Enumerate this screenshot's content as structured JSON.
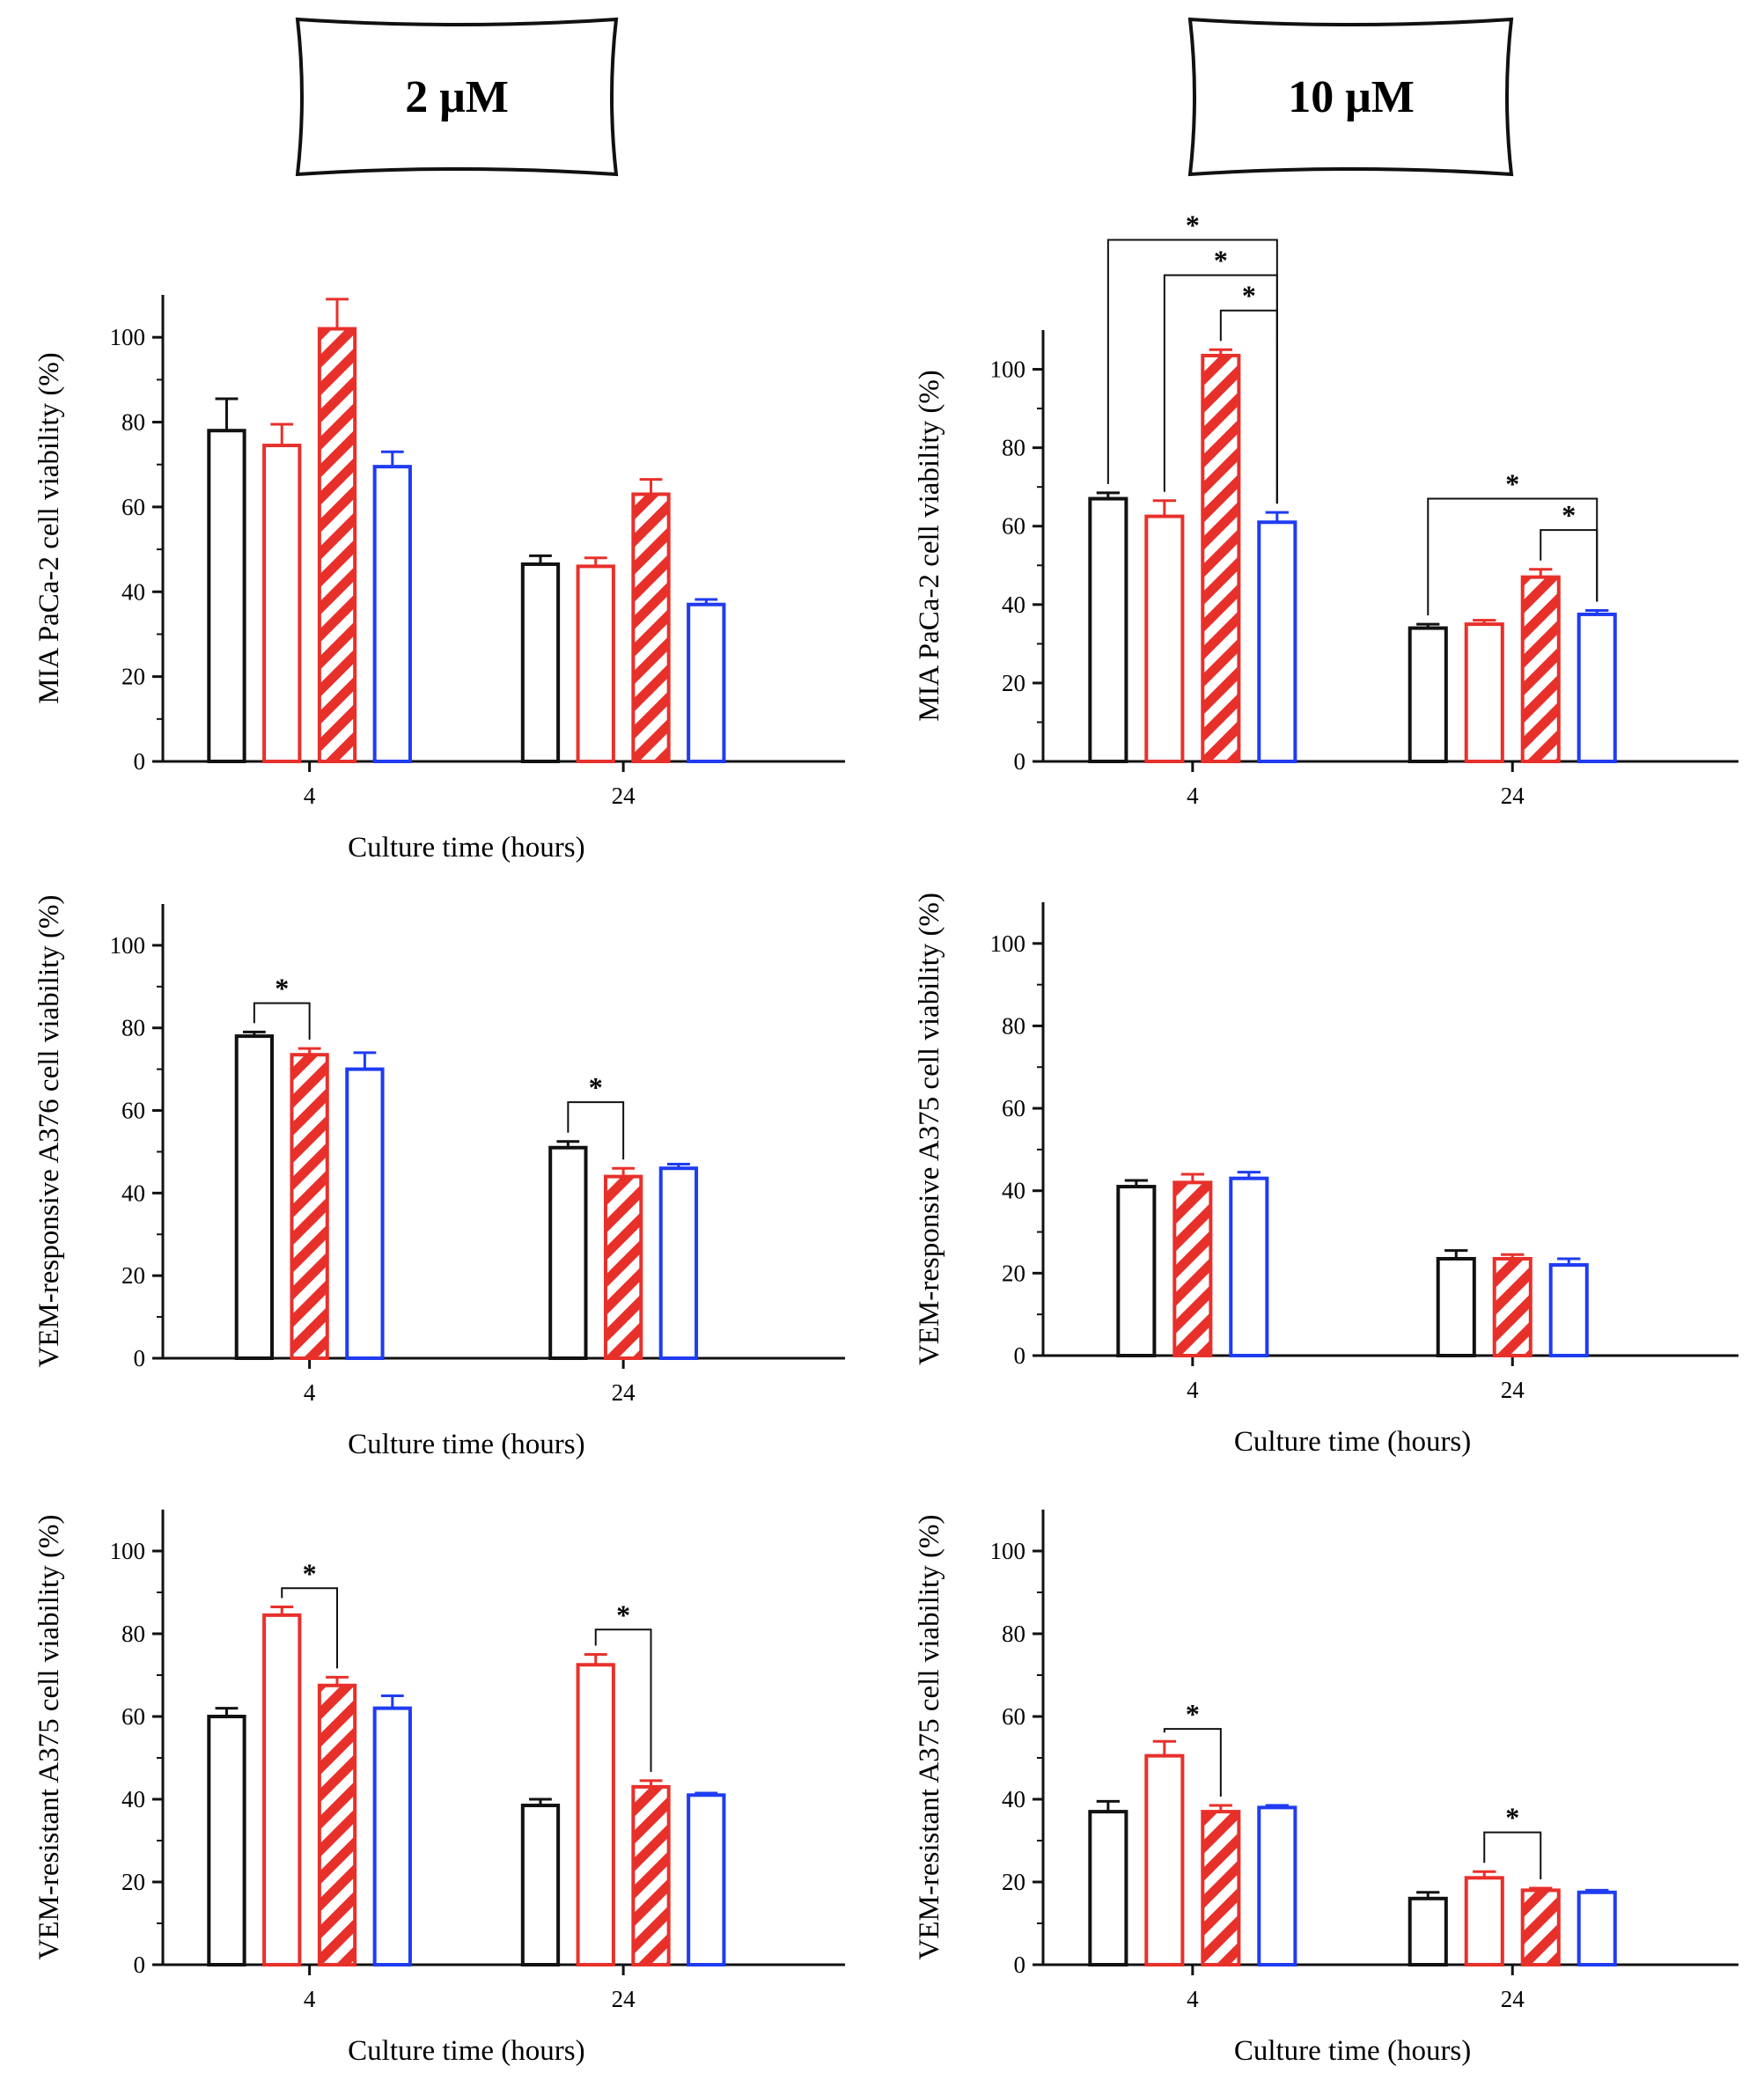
{
  "headers": {
    "left": "2 μM",
    "right": "10 μM"
  },
  "colors": {
    "black": "#111111",
    "red": "#e8302b",
    "blue": "#1f3cf2"
  },
  "chart_data": [
    {
      "id": "p2-mia",
      "type": "bar",
      "ylabel": "MIA PaCa-2 cell viability (%)",
      "xlabel": "Culture time (hours)",
      "categories": [
        "4",
        "24"
      ],
      "ylim": [
        0,
        110
      ],
      "yticks": [
        "0",
        "20",
        "40",
        "60",
        "80",
        "100"
      ],
      "series": [
        {
          "color": "black",
          "pattern": "solid",
          "values": [
            78,
            46.5
          ],
          "errors": [
            7.5,
            2
          ]
        },
        {
          "color": "red",
          "pattern": "solid",
          "values": [
            74.5,
            46
          ],
          "errors": [
            5,
            2
          ]
        },
        {
          "color": "red",
          "pattern": "hatch",
          "values": [
            102,
            63
          ],
          "errors": [
            7,
            3.5
          ]
        },
        {
          "color": "blue",
          "pattern": "solid",
          "values": [
            69.5,
            37
          ],
          "errors": [
            3.5,
            1.2
          ]
        }
      ],
      "annotations": []
    },
    {
      "id": "p10-mia",
      "type": "bar",
      "ylabel": "MIA PaCa-2 cell viability (%)",
      "xlabel": "Culture time (hours)",
      "categories": [
        "4",
        "24"
      ],
      "ylim": [
        0,
        110
      ],
      "yticks": [
        "0",
        "20",
        "40",
        "60",
        "80",
        "100"
      ],
      "series": [
        {
          "color": "black",
          "pattern": "solid",
          "values": [
            67,
            34
          ],
          "errors": [
            1.5,
            1
          ]
        },
        {
          "color": "red",
          "pattern": "solid",
          "values": [
            62.5,
            35
          ],
          "errors": [
            4,
            1
          ]
        },
        {
          "color": "red",
          "pattern": "hatch",
          "values": [
            103.5,
            47
          ],
          "errors": [
            1.5,
            2
          ]
        },
        {
          "color": "blue",
          "pattern": "solid",
          "values": [
            61,
            37.5
          ],
          "errors": [
            2.5,
            1
          ]
        }
      ],
      "annotations": [
        {
          "label": "*",
          "group": 0,
          "from": 0,
          "to": 3,
          "level": 133
        },
        {
          "label": "*",
          "group": 0,
          "from": 1,
          "to": 3,
          "level": 124
        },
        {
          "label": "*",
          "group": 0,
          "from": 2,
          "to": 3,
          "level": 115
        },
        {
          "label": "*",
          "group": 1,
          "from": 0,
          "to": 3,
          "level": 67
        },
        {
          "label": "*",
          "group": 1,
          "from": 2,
          "to": 3,
          "level": 59
        }
      ]
    },
    {
      "id": "p2-a376",
      "type": "bar",
      "ylabel": "VEM-responsive A376 cell viability (%)",
      "xlabel": "Culture time (hours)",
      "categories": [
        "4",
        "24"
      ],
      "ylim": [
        0,
        110
      ],
      "yticks": [
        "0",
        "20",
        "40",
        "60",
        "80",
        "100"
      ],
      "series": [
        {
          "color": "black",
          "pattern": "solid",
          "values": [
            78,
            51
          ],
          "errors": [
            1,
            1.5
          ]
        },
        {
          "color": "red",
          "pattern": "hatch",
          "values": [
            73.5,
            44
          ],
          "errors": [
            1.5,
            2
          ]
        },
        {
          "color": "blue",
          "pattern": "solid",
          "values": [
            70,
            46
          ],
          "errors": [
            4,
            1
          ]
        }
      ],
      "annotations": [
        {
          "label": "*",
          "group": 0,
          "from": 0,
          "to": 1,
          "level": 86
        },
        {
          "label": "*",
          "group": 1,
          "from": 0,
          "to": 1,
          "level": 62
        }
      ]
    },
    {
      "id": "p10-a375",
      "type": "bar",
      "ylabel": "VEM-responsive A375 cell viability (%)",
      "xlabel": "Culture time (hours)",
      "categories": [
        "4",
        "24"
      ],
      "ylim": [
        0,
        110
      ],
      "yticks": [
        "0",
        "20",
        "40",
        "60",
        "80",
        "100"
      ],
      "series": [
        {
          "color": "black",
          "pattern": "solid",
          "values": [
            41,
            23.5
          ],
          "errors": [
            1.5,
            2
          ]
        },
        {
          "color": "red",
          "pattern": "hatch",
          "values": [
            42,
            23.5
          ],
          "errors": [
            2,
            1
          ]
        },
        {
          "color": "blue",
          "pattern": "solid",
          "values": [
            43,
            22
          ],
          "errors": [
            1.5,
            1.5
          ]
        }
      ],
      "annotations": []
    },
    {
      "id": "p2-res",
      "type": "bar",
      "ylabel": "VEM-resistant A375 cell viability (%)",
      "xlabel": "Culture time (hours)",
      "categories": [
        "4",
        "24"
      ],
      "ylim": [
        0,
        110
      ],
      "yticks": [
        "0",
        "20",
        "40",
        "60",
        "80",
        "100"
      ],
      "series": [
        {
          "color": "black",
          "pattern": "solid",
          "values": [
            60,
            38.5
          ],
          "errors": [
            2,
            1.5
          ]
        },
        {
          "color": "red",
          "pattern": "solid",
          "values": [
            84.5,
            72.5
          ],
          "errors": [
            2,
            2.5
          ]
        },
        {
          "color": "red",
          "pattern": "hatch",
          "values": [
            67.5,
            43
          ],
          "errors": [
            2,
            1.5
          ]
        },
        {
          "color": "blue",
          "pattern": "solid",
          "values": [
            62,
            41
          ],
          "errors": [
            3,
            0.5
          ]
        }
      ],
      "annotations": [
        {
          "label": "*",
          "group": 0,
          "from": 1,
          "to": 2,
          "level": 91
        },
        {
          "label": "*",
          "group": 1,
          "from": 1,
          "to": 2,
          "level": 81
        }
      ]
    },
    {
      "id": "p10-res",
      "type": "bar",
      "ylabel": "VEM-resistant A375 cell viability (%)",
      "xlabel": "Culture time (hours)",
      "categories": [
        "4",
        "24"
      ],
      "ylim": [
        0,
        110
      ],
      "yticks": [
        "0",
        "20",
        "40",
        "60",
        "80",
        "100"
      ],
      "series": [
        {
          "color": "black",
          "pattern": "solid",
          "values": [
            37,
            16
          ],
          "errors": [
            2.5,
            1.5
          ]
        },
        {
          "color": "red",
          "pattern": "solid",
          "values": [
            50.5,
            21
          ],
          "errors": [
            3.5,
            1.5
          ]
        },
        {
          "color": "red",
          "pattern": "hatch",
          "values": [
            37,
            18
          ],
          "errors": [
            1.5,
            0.5
          ]
        },
        {
          "color": "blue",
          "pattern": "solid",
          "values": [
            38,
            17.5
          ],
          "errors": [
            0.5,
            0.5
          ]
        }
      ],
      "annotations": [
        {
          "label": "*",
          "group": 0,
          "from": 1,
          "to": 2,
          "level": 57
        },
        {
          "label": "*",
          "group": 1,
          "from": 1,
          "to": 2,
          "level": 32
        }
      ]
    }
  ]
}
